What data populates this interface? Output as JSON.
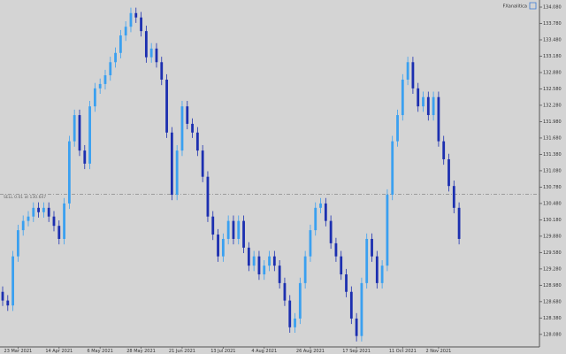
{
  "chart_data": {
    "type": "candlestick",
    "brand": "FXanalitica",
    "price_line": {
      "value": 130.647,
      "label": "SELL 0.01 at 130.647"
    },
    "up_color": "#3aa0f0",
    "down_color": "#1c2fb0",
    "categories": [
      null,
      null,
      null,
      "23 Mar 2021",
      null,
      null,
      null,
      null,
      null,
      null,
      null,
      "14 Apr 2021",
      null,
      null,
      null,
      null,
      null,
      null,
      null,
      "6 May 2021",
      null,
      null,
      null,
      null,
      null,
      null,
      null,
      "28 May 2021",
      null,
      null,
      null,
      null,
      null,
      null,
      null,
      "21 Jun 2021",
      null,
      null,
      null,
      null,
      null,
      null,
      null,
      "13 Jul 2021",
      null,
      null,
      null,
      null,
      null,
      null,
      null,
      "4 Aug 2021",
      null,
      null,
      null,
      null,
      null,
      null,
      null,
      null,
      "26 Aug 2021",
      null,
      null,
      null,
      null,
      null,
      null,
      null,
      null,
      "17 Sep 2021",
      null,
      null,
      null,
      null,
      null,
      null,
      null,
      null,
      "11 Oct 2021",
      null,
      null,
      null,
      null,
      null,
      null,
      "2 Nov 2021",
      null,
      null,
      null,
      null
    ],
    "open": [
      128.86,
      128.7,
      128.61,
      129.51,
      129.99,
      130.16,
      130.24,
      130.4,
      130.32,
      130.4,
      130.24,
      130.07,
      129.83,
      130.48,
      131.62,
      132.1,
      131.45,
      131.21,
      132.26,
      132.59,
      132.67,
      132.83,
      133.07,
      133.24,
      133.56,
      133.72,
      133.97,
      133.89,
      133.64,
      133.16,
      133.32,
      133.07,
      132.75,
      131.78,
      130.64,
      131.45,
      132.26,
      131.94,
      131.78,
      131.45,
      130.97,
      130.24,
      129.91,
      129.51,
      129.83,
      130.16,
      129.83,
      130.16,
      129.67,
      129.34,
      129.51,
      129.18,
      129.34,
      129.51,
      129.34,
      129.02,
      128.7,
      128.21,
      128.37,
      129.02,
      129.51,
      129.99,
      130.4,
      130.48,
      130.16,
      129.75,
      129.51,
      129.18,
      128.86,
      128.37,
      128.05,
      129.02,
      129.83,
      129.51,
      129.02,
      129.34,
      130.64,
      131.62,
      132.1,
      132.75,
      133.07,
      132.59,
      132.26,
      132.43,
      132.1,
      132.43,
      131.62,
      131.29,
      130.8,
      130.4
    ],
    "high": [
      128.96,
      128.8,
      129.61,
      130.09,
      130.26,
      130.34,
      130.5,
      130.5,
      130.5,
      130.5,
      130.34,
      130.17,
      130.58,
      131.72,
      132.2,
      132.2,
      131.55,
      132.36,
      132.69,
      132.77,
      132.93,
      133.17,
      133.34,
      133.66,
      133.82,
      134.07,
      134.07,
      133.99,
      133.74,
      133.42,
      133.42,
      133.17,
      132.85,
      131.88,
      131.55,
      132.36,
      132.36,
      132.04,
      131.88,
      131.55,
      131.07,
      130.34,
      130.01,
      129.93,
      130.26,
      130.26,
      130.26,
      130.26,
      129.77,
      129.61,
      129.61,
      129.44,
      129.61,
      129.61,
      129.44,
      129.12,
      128.8,
      128.47,
      129.12,
      129.61,
      130.09,
      130.5,
      130.58,
      130.58,
      130.26,
      129.85,
      129.61,
      129.28,
      128.96,
      128.47,
      129.12,
      129.93,
      129.93,
      129.61,
      129.44,
      130.74,
      131.72,
      132.2,
      132.85,
      133.17,
      133.17,
      132.69,
      132.53,
      132.53,
      132.53,
      132.53,
      131.72,
      131.39,
      130.9,
      130.5
    ],
    "low": [
      128.6,
      128.51,
      128.51,
      129.41,
      129.89,
      130.06,
      130.14,
      130.22,
      130.22,
      130.14,
      129.97,
      129.73,
      129.73,
      130.38,
      131.52,
      131.35,
      131.11,
      131.11,
      132.16,
      132.49,
      132.57,
      132.73,
      132.97,
      133.14,
      133.46,
      133.62,
      133.79,
      133.54,
      133.06,
      133.06,
      132.97,
      132.65,
      131.68,
      130.54,
      130.54,
      131.35,
      131.84,
      131.68,
      131.35,
      130.87,
      130.14,
      129.81,
      129.41,
      129.41,
      129.73,
      129.73,
      129.73,
      129.57,
      129.24,
      129.24,
      129.08,
      129.08,
      129.24,
      129.24,
      128.92,
      128.6,
      128.11,
      128.11,
      128.27,
      128.92,
      129.41,
      129.89,
      130.3,
      130.06,
      129.65,
      129.41,
      129.08,
      128.76,
      128.27,
      127.95,
      127.95,
      128.92,
      129.41,
      128.92,
      128.92,
      129.24,
      130.54,
      131.52,
      132.0,
      132.65,
      132.49,
      132.16,
      132.16,
      132.0,
      132.0,
      131.52,
      131.19,
      130.7,
      130.3,
      129.73
    ],
    "close": [
      128.7,
      128.61,
      129.51,
      129.99,
      130.16,
      130.24,
      130.4,
      130.32,
      130.4,
      130.24,
      130.07,
      129.83,
      130.48,
      131.62,
      132.1,
      131.45,
      131.21,
      132.26,
      132.59,
      132.67,
      132.83,
      133.07,
      133.24,
      133.56,
      133.72,
      133.97,
      133.89,
      133.64,
      133.16,
      133.32,
      133.07,
      132.75,
      131.78,
      130.64,
      131.45,
      132.26,
      131.94,
      131.78,
      131.45,
      130.97,
      130.24,
      129.91,
      129.51,
      129.83,
      130.16,
      129.83,
      130.16,
      129.67,
      129.34,
      129.51,
      129.18,
      129.34,
      129.51,
      129.34,
      129.02,
      128.7,
      128.21,
      128.37,
      129.02,
      129.51,
      129.99,
      130.4,
      130.48,
      130.16,
      129.75,
      129.51,
      129.18,
      128.86,
      128.37,
      128.05,
      129.02,
      129.83,
      129.51,
      129.02,
      129.34,
      130.64,
      131.62,
      132.1,
      132.75,
      133.07,
      132.59,
      132.26,
      132.43,
      132.1,
      132.43,
      131.62,
      131.29,
      130.8,
      130.4,
      129.83
    ],
    "ylim": [
      127.85,
      134.21
    ],
    "yticks": [
      {
        "value": 134.08,
        "label": "134.080"
      },
      {
        "value": 133.78,
        "label": "133.780"
      },
      {
        "value": 133.48,
        "label": "133.480"
      },
      {
        "value": 133.18,
        "label": "133.180"
      },
      {
        "value": 132.88,
        "label": "132.880"
      },
      {
        "value": 132.58,
        "label": "132.580"
      },
      {
        "value": 132.28,
        "label": "132.280"
      },
      {
        "value": 131.98,
        "label": "131.980"
      },
      {
        "value": 131.68,
        "label": "131.680"
      },
      {
        "value": 131.38,
        "label": "131.380"
      },
      {
        "value": 131.08,
        "label": "131.080"
      },
      {
        "value": 130.78,
        "label": "130.780"
      },
      {
        "value": 130.48,
        "label": "130.480"
      },
      {
        "value": 130.18,
        "label": "130.180"
      },
      {
        "value": 129.88,
        "label": "129.880"
      },
      {
        "value": 129.58,
        "label": "129.580"
      },
      {
        "value": 129.28,
        "label": "129.280"
      },
      {
        "value": 128.98,
        "label": "128.980"
      },
      {
        "value": 128.68,
        "label": "128.680"
      },
      {
        "value": 128.38,
        "label": "128.380"
      },
      {
        "value": 128.08,
        "label": "128.080"
      }
    ],
    "grid": false
  }
}
